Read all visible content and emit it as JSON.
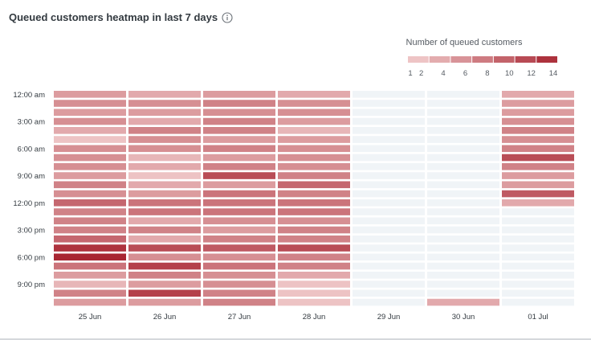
{
  "chart_data": {
    "type": "heatmap",
    "title": "Queued customers heatmap in last 7 days",
    "info_icon": "info-icon",
    "legend": {
      "title": "Number of queued customers",
      "ticks": [
        "1",
        "2",
        "4",
        "6",
        "8",
        "10",
        "12",
        "14"
      ],
      "tick_values": [
        1,
        2,
        4,
        6,
        8,
        10,
        12,
        14
      ],
      "min": 1,
      "max": 14
    },
    "colors": {
      "empty": "#f0f4f7",
      "low": "#f3d0d0",
      "high": "#a82632"
    },
    "days": [
      "25 Jun",
      "26 Jun",
      "27 Jun",
      "28 Jun",
      "29 Jun",
      "30 Jun",
      "01 Jul"
    ],
    "hours": [
      "12:00 am",
      "",
      "",
      "3:00 am",
      "",
      "",
      "6:00 am",
      "",
      "",
      "9:00 am",
      "",
      "",
      "12:00 pm",
      "",
      "",
      "3:00 pm",
      "",
      "",
      "6:00 pm",
      "",
      "",
      "9:00 pm",
      "",
      ""
    ],
    "values": [
      [
        5,
        6,
        5,
        6,
        4,
        2,
        6,
        6,
        6,
        5,
        7,
        6,
        9,
        7,
        7,
        7,
        9,
        13,
        14,
        8,
        5,
        3,
        7,
        5
      ],
      [
        4,
        6,
        5,
        4,
        7,
        6,
        6,
        3,
        4,
        2,
        4,
        5,
        8,
        8,
        4,
        7,
        4,
        11,
        6,
        12,
        7,
        5,
        12,
        5
      ],
      [
        5,
        7,
        6,
        7,
        7,
        5,
        7,
        5,
        7,
        11,
        5,
        8,
        8,
        8,
        6,
        5,
        7,
        10,
        6,
        8,
        6,
        6,
        7,
        7
      ],
      [
        4,
        6,
        6,
        5,
        3,
        5,
        6,
        6,
        6,
        7,
        9,
        7,
        8,
        8,
        6,
        7,
        7,
        11,
        7,
        7,
        4,
        2,
        2,
        2
      ],
      [
        0,
        0,
        0,
        0,
        0,
        0,
        0,
        0,
        0,
        0,
        0,
        0,
        0,
        0,
        0,
        0,
        0,
        0,
        0,
        0,
        0,
        0,
        0,
        0
      ],
      [
        0,
        0,
        0,
        0,
        0,
        0,
        0,
        0,
        0,
        0,
        0,
        0,
        0,
        0,
        0,
        0,
        0,
        0,
        0,
        0,
        0,
        0,
        0,
        4
      ],
      [
        4,
        5,
        5,
        6,
        7,
        6,
        7,
        11,
        7,
        5,
        5,
        10,
        4,
        0,
        0,
        0,
        0,
        0,
        0,
        0,
        0,
        0,
        0,
        0
      ]
    ]
  }
}
